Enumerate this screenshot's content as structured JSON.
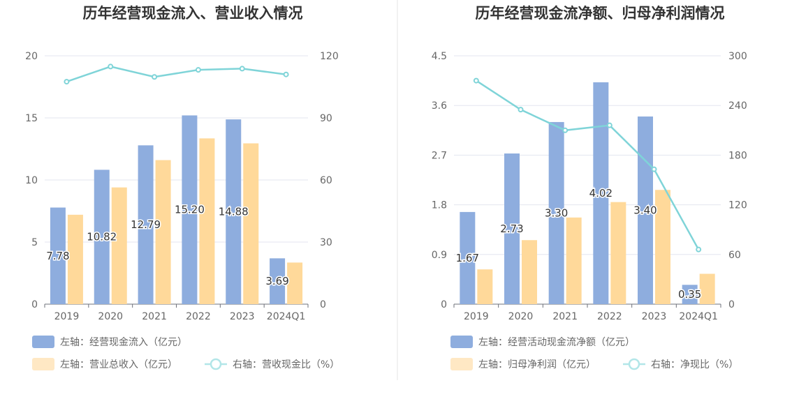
{
  "chart_data": [
    {
      "type": "bar",
      "title": "历年经营现金流入、营业收入情况",
      "categories": [
        "2019",
        "2020",
        "2021",
        "2022",
        "2023",
        "2024Q1"
      ],
      "ylim": [
        0,
        20
      ],
      "y_ticks": [
        "0",
        "5",
        "10",
        "15",
        "20"
      ],
      "y2lim": [
        0,
        120
      ],
      "y2_ticks": [
        "0",
        "30",
        "60",
        "90",
        "120"
      ],
      "grid": true,
      "legend_position": "bottom-left",
      "series": [
        {
          "name": "左轴：经营现金流入（亿元）",
          "type": "bar",
          "axis": "left",
          "color": "#8eadde",
          "values": [
            7.78,
            10.82,
            12.79,
            15.2,
            14.88,
            3.69
          ],
          "labels": [
            "7.78",
            "10.82",
            "12.79",
            "15.20",
            "14.88",
            "3.69"
          ]
        },
        {
          "name": "左轴：营业总收入（亿元）",
          "type": "bar",
          "axis": "left",
          "color": "#ffd99a",
          "values": [
            7.2,
            9.4,
            11.6,
            13.35,
            12.95,
            3.35
          ]
        },
        {
          "name": "右轴：营收现金比（%）",
          "type": "line",
          "axis": "right",
          "color": "#7fd4d8",
          "values": [
            107.5,
            114.8,
            109.8,
            113.2,
            113.8,
            111.0
          ]
        }
      ]
    },
    {
      "type": "bar",
      "title": "历年经营现金流净额、归母净利润情况",
      "categories": [
        "2019",
        "2020",
        "2021",
        "2022",
        "2023",
        "2024Q1"
      ],
      "ylim": [
        0,
        4.5
      ],
      "y_ticks": [
        "0",
        "0.9",
        "1.8",
        "2.7",
        "3.6",
        "4.5"
      ],
      "y2lim": [
        0,
        300
      ],
      "y2_ticks": [
        "0",
        "60",
        "120",
        "180",
        "240",
        "300"
      ],
      "grid": true,
      "legend_position": "bottom-left",
      "series": [
        {
          "name": "左轴：经营活动现金流净额（亿元）",
          "type": "bar",
          "axis": "left",
          "color": "#8eadde",
          "values": [
            1.67,
            2.73,
            3.3,
            4.02,
            3.4,
            0.35
          ],
          "labels": [
            "1.67",
            "2.73",
            "3.30",
            "4.02",
            "3.40",
            "0.35"
          ]
        },
        {
          "name": "左轴：归母净利润（亿元）",
          "type": "bar",
          "axis": "left",
          "color": "#ffd99a",
          "values": [
            0.63,
            1.16,
            1.57,
            1.85,
            2.07,
            0.55
          ]
        },
        {
          "name": "右轴：净现比（%）",
          "type": "line",
          "axis": "right",
          "color": "#7fd4d8",
          "values": [
            270,
            235,
            210,
            216,
            163,
            66
          ]
        }
      ]
    }
  ]
}
